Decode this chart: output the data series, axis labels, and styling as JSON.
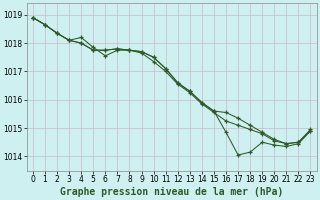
{
  "xlabel": "Graphe pression niveau de la mer (hPa)",
  "xlim": [
    -0.5,
    23.5
  ],
  "ylim": [
    1013.5,
    1019.4
  ],
  "yticks": [
    1014,
    1015,
    1016,
    1017,
    1018,
    1019
  ],
  "xticks": [
    0,
    1,
    2,
    3,
    4,
    5,
    6,
    7,
    8,
    9,
    10,
    11,
    12,
    13,
    14,
    15,
    16,
    17,
    18,
    19,
    20,
    21,
    22,
    23
  ],
  "background_color": "#cff0f0",
  "grid_color": "#c8b8cc",
  "line_color": "#2d5a27",
  "line1_y": [
    1018.9,
    1018.65,
    1018.35,
    1018.1,
    1018.0,
    1017.75,
    1017.75,
    1017.8,
    1017.75,
    1017.7,
    1017.5,
    1017.1,
    1016.6,
    1016.3,
    1015.9,
    1015.6,
    1015.55,
    1015.35,
    1015.1,
    1014.85,
    1014.6,
    1014.45,
    1014.5,
    1014.9
  ],
  "line2_y": [
    1018.9,
    1018.65,
    1018.35,
    1018.1,
    1018.0,
    1017.75,
    1017.75,
    1017.8,
    1017.75,
    1017.7,
    1017.5,
    1017.1,
    1016.6,
    1016.3,
    1015.9,
    1015.6,
    1014.85,
    1014.05,
    1014.15,
    1014.5,
    1014.4,
    1014.35,
    1014.45,
    1014.9
  ],
  "line3_y": [
    1018.9,
    1018.65,
    1018.35,
    1018.1,
    1018.2,
    1017.85,
    1017.55,
    1017.75,
    1017.75,
    1017.65,
    1017.35,
    1017.0,
    1016.55,
    1016.25,
    1015.85,
    1015.55,
    1015.25,
    1015.1,
    1014.95,
    1014.8,
    1014.55,
    1014.45,
    1014.5,
    1014.95
  ],
  "tick_fontsize": 5.5,
  "label_fontsize": 7.0
}
